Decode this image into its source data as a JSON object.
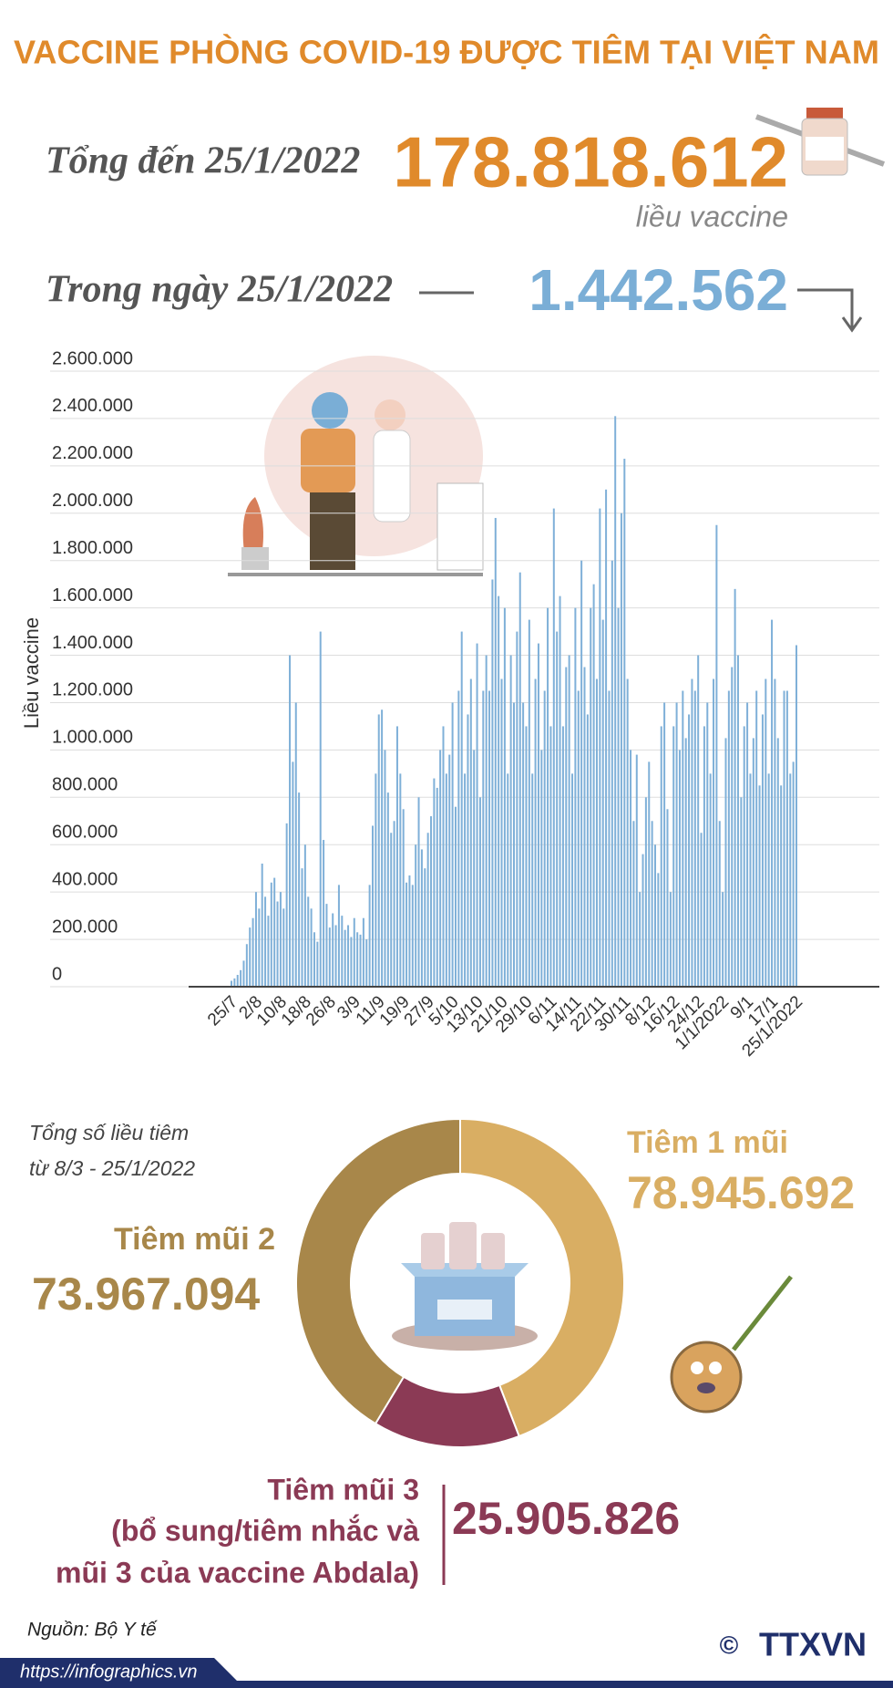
{
  "header": {
    "title": "VACCINE PHÒNG COVID-19 ĐƯỢC TIÊM TẠI VIỆT NAM",
    "total_label": "Tổng đến 25/1/2022",
    "total_value": "178.818.612",
    "total_unit": "liều vaccine",
    "daily_label": "Trong ngày 25/1/2022",
    "daily_value": "1.442.562"
  },
  "chart_data": [
    {
      "type": "bar",
      "ylabel": "Liều vaccine",
      "color": "#7fb0d8",
      "grid": true,
      "ylim": [
        0,
        2600000
      ],
      "yticks": [
        0,
        {
          "value": 200000,
          "label": "200.000"
        },
        {
          "value": 400000,
          "label": "400.000"
        },
        {
          "value": 600000,
          "label": "600.000"
        },
        {
          "value": 800000,
          "label": "800.000"
        },
        {
          "value": 1000000,
          "label": "1.000.000"
        },
        {
          "value": 1200000,
          "label": "1.200.000"
        },
        {
          "value": 1400000,
          "label": "1.400.000"
        },
        {
          "value": 1600000,
          "label": "1.600.000"
        },
        {
          "value": 1800000,
          "label": "1.800.000"
        },
        {
          "value": 2000000,
          "label": "2.000.000"
        },
        {
          "value": 2200000,
          "label": "2.200.000"
        },
        {
          "value": 2400000,
          "label": "2.400.000"
        },
        {
          "value": 2600000,
          "label": "2.600.000"
        }
      ],
      "categories": [
        "25/7",
        null,
        null,
        null,
        null,
        null,
        null,
        null,
        "2/8",
        null,
        null,
        null,
        null,
        null,
        null,
        null,
        "10/8",
        null,
        null,
        null,
        null,
        null,
        null,
        null,
        "18/8",
        null,
        null,
        null,
        null,
        null,
        null,
        null,
        "26/8",
        null,
        null,
        null,
        null,
        null,
        null,
        null,
        "3/9",
        null,
        null,
        null,
        null,
        null,
        null,
        null,
        "11/9",
        null,
        null,
        null,
        null,
        null,
        null,
        null,
        "19/9",
        null,
        null,
        null,
        null,
        null,
        null,
        null,
        "27/9",
        null,
        null,
        null,
        null,
        null,
        null,
        null,
        "5/10",
        null,
        null,
        null,
        null,
        null,
        null,
        null,
        "13/10",
        null,
        null,
        null,
        null,
        null,
        null,
        null,
        "21/10",
        null,
        null,
        null,
        null,
        null,
        null,
        null,
        "29/10",
        null,
        null,
        null,
        null,
        null,
        null,
        null,
        "6/11",
        null,
        null,
        null,
        null,
        null,
        null,
        null,
        "14/11",
        null,
        null,
        null,
        null,
        null,
        null,
        null,
        "22/11",
        null,
        null,
        null,
        null,
        null,
        null,
        null,
        "30/11",
        null,
        null,
        null,
        null,
        null,
        null,
        null,
        "8/12",
        null,
        null,
        null,
        null,
        null,
        null,
        null,
        "16/12",
        null,
        null,
        null,
        null,
        null,
        null,
        null,
        "24/12",
        null,
        null,
        null,
        null,
        null,
        null,
        null,
        "1/1/2022",
        null,
        null,
        null,
        null,
        null,
        null,
        null,
        "9/1",
        null,
        null,
        null,
        null,
        null,
        null,
        null,
        "17/1",
        null,
        null,
        null,
        null,
        null,
        null,
        null,
        "25/1/2022"
      ],
      "values": [
        25000,
        35000,
        50000,
        70000,
        110000,
        180000,
        250000,
        290000,
        400000,
        330000,
        520000,
        380000,
        300000,
        440000,
        460000,
        360000,
        400000,
        330000,
        690000,
        1400000,
        950000,
        1200000,
        820000,
        500000,
        600000,
        380000,
        330000,
        230000,
        190000,
        1500000,
        620000,
        350000,
        250000,
        310000,
        260000,
        430000,
        300000,
        240000,
        260000,
        210000,
        290000,
        230000,
        220000,
        290000,
        200000,
        430000,
        680000,
        900000,
        1150000,
        1170000,
        1000000,
        820000,
        650000,
        700000,
        1100000,
        900000,
        750000,
        440000,
        470000,
        430000,
        600000,
        800000,
        580000,
        500000,
        650000,
        720000,
        880000,
        840000,
        1000000,
        1100000,
        900000,
        980000,
        1200000,
        760000,
        1250000,
        1500000,
        900000,
        1150000,
        1300000,
        1000000,
        1450000,
        800000,
        1250000,
        1400000,
        1250000,
        1720000,
        1980000,
        1650000,
        1300000,
        1600000,
        900000,
        1400000,
        1200000,
        1500000,
        1750000,
        1200000,
        1100000,
        1550000,
        900000,
        1300000,
        1450000,
        1000000,
        1250000,
        1600000,
        1100000,
        2020000,
        1500000,
        1650000,
        1100000,
        1350000,
        1400000,
        900000,
        1600000,
        1250000,
        1800000,
        1350000,
        1150000,
        1600000,
        1700000,
        1300000,
        2020000,
        1550000,
        2100000,
        1250000,
        1800000,
        2410000,
        1600000,
        2000000,
        2230000,
        1300000,
        1000000,
        700000,
        980000,
        400000,
        560000,
        800000,
        950000,
        700000,
        600000,
        480000,
        1100000,
        1200000,
        750000,
        400000,
        1100000,
        1200000,
        1000000,
        1250000,
        1050000,
        1150000,
        1300000,
        1250000,
        1400000,
        650000,
        1100000,
        1200000,
        900000,
        1300000,
        1950000,
        700000,
        400000,
        1050000,
        1250000,
        1350000,
        1680000,
        1400000,
        800000,
        1100000,
        1200000,
        900000,
        1050000,
        1250000,
        850000,
        1150000,
        1300000,
        900000,
        1550000,
        1300000,
        1050000,
        850000,
        1250000,
        1250000,
        900000,
        950000,
        1442562
      ]
    },
    {
      "type": "donut",
      "title": "Tổng số liều tiêm",
      "subtitle": "từ 8/3 - 25/1/2022",
      "categories": [
        "Tiêm 1 mũi",
        "Tiêm mũi 2",
        "Tiêm mũi 3"
      ],
      "category_notes": [
        null,
        null,
        [
          "(bổ sung/tiêm nhắc và",
          "mũi 3 của vaccine Abdala)"
        ]
      ],
      "values": [
        78945692,
        73967094,
        25905826
      ],
      "value_labels": [
        "78.945.692",
        "73.967.094",
        "25.905.826"
      ],
      "colors": [
        "#d9ae63",
        "#a8874a",
        "#8b3a55"
      ]
    }
  ],
  "footer": {
    "source": "Nguồn: Bộ Y tế",
    "url": "https://infographics.vn",
    "logo_mark": "©",
    "logo": "TTXVN"
  }
}
